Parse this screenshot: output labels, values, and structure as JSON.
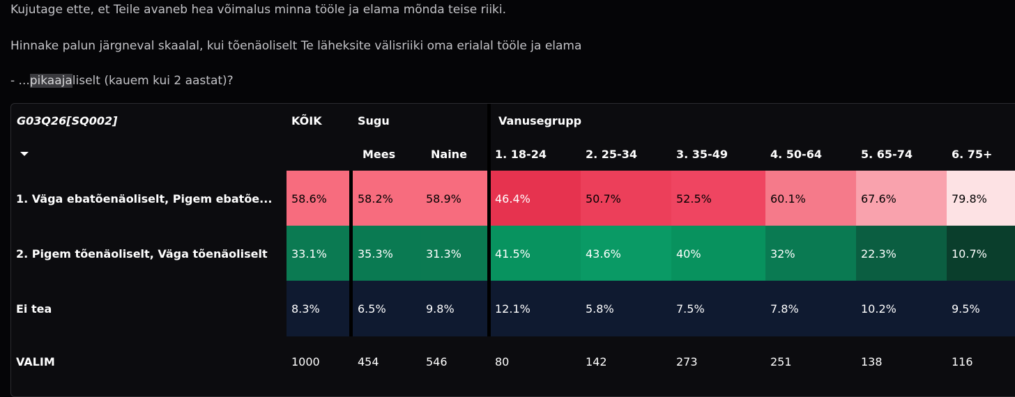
{
  "intro": {
    "line1": "Kujutage ette, et Teile avaneb hea võimalus minna tööle ja elama mõnda teise riiki.",
    "line2": "Hinnake palun järgneval skaalal, kui tõenäoliselt Te läheksite välisriiki oma erialal tööle ja elama",
    "line3_pre": "- ...",
    "line3_hl": "pikaaja",
    "line3_post": "liselt (kauem kui 2 aastat)?"
  },
  "table": {
    "question_id": "G03Q26[SQ002]",
    "group_headers": {
      "all": "KÕIK",
      "sex": "Sugu",
      "age": "Vanusegrupp"
    },
    "columns": [
      "Mees",
      "Naine",
      "1. 18-24",
      "2. 25-34",
      "3. 35-49",
      "4. 50-64",
      "5. 65-74",
      "6. 75+"
    ],
    "rows": [
      {
        "label": "1. Väga ebatõenäoliselt, Pigem ebatõe...",
        "values": [
          "58.6%",
          "58.2%",
          "58.9%",
          "46.4%",
          "50.7%",
          "52.5%",
          "60.1%",
          "67.6%",
          "79.8%"
        ],
        "colors": [
          "#f76c7e",
          "#f76c7e",
          "#f76c7e",
          "#e6334f",
          "#ec3f5a",
          "#ef4561",
          "#f57a8a",
          "#f9a2ad",
          "#fde2e4"
        ],
        "text_colors": [
          "#000000",
          "#000000",
          "#000000",
          "#ffffff",
          "#000000",
          "#000000",
          "#000000",
          "#000000",
          "#000000"
        ]
      },
      {
        "label": "2. Pigem tõenäoliselt, Väga tõenäoliselt",
        "values": [
          "33.1%",
          "35.3%",
          "31.3%",
          "41.5%",
          "43.6%",
          "40%",
          "32%",
          "22.3%",
          "10.7%"
        ],
        "colors": [
          "#0b7a52",
          "#0a7a52",
          "#0b7a52",
          "#08935f",
          "#0a9a65",
          "#08925e",
          "#0a7a52",
          "#0b5e41",
          "#0a3e2c"
        ],
        "text_colors": [
          "#ffffff",
          "#ffffff",
          "#ffffff",
          "#ffffff",
          "#ffffff",
          "#ffffff",
          "#ffffff",
          "#ffffff",
          "#ffffff"
        ]
      },
      {
        "label": "Ei tea",
        "values": [
          "8.3%",
          "6.5%",
          "9.8%",
          "12.1%",
          "5.8%",
          "7.5%",
          "7.8%",
          "10.2%",
          "9.5%"
        ],
        "colors": [
          "#0f1a30",
          "#0f1a30",
          "#0f1a30",
          "#0f1a30",
          "#0f1a30",
          "#0f1a30",
          "#0f1a30",
          "#0f1a30",
          "#0f1a30"
        ],
        "text_colors": [
          "#ffffff",
          "#ffffff",
          "#ffffff",
          "#ffffff",
          "#ffffff",
          "#ffffff",
          "#ffffff",
          "#ffffff",
          "#ffffff"
        ]
      }
    ],
    "sample": {
      "label": "VALIM",
      "values": [
        "1000",
        "454",
        "546",
        "80",
        "142",
        "273",
        "251",
        "138",
        "116"
      ]
    }
  }
}
